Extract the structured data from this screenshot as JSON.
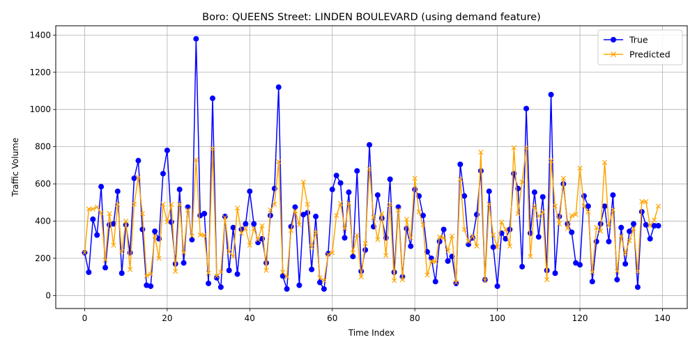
{
  "chart_data": {
    "type": "line",
    "title": "Boro: QUEENS Street: LINDEN BOULEVARD (using demand feature)",
    "xlabel": "Time Index",
    "ylabel": "Traffic Volume",
    "xlim": [
      -7,
      146
    ],
    "ylim": [
      -70,
      1450
    ],
    "xticks": [
      0,
      20,
      40,
      60,
      80,
      100,
      120,
      140
    ],
    "yticks": [
      0,
      200,
      400,
      600,
      800,
      1000,
      1200,
      1400
    ],
    "grid": true,
    "legend_position": "upper right",
    "series": [
      {
        "name": "True",
        "color": "#0000ff",
        "marker": "circle",
        "values": [
          230,
          125,
          410,
          325,
          585,
          150,
          380,
          385,
          560,
          120,
          380,
          230,
          630,
          725,
          355,
          55,
          50,
          345,
          305,
          655,
          780,
          395,
          170,
          570,
          175,
          475,
          300,
          1380,
          430,
          440,
          65,
          1060,
          95,
          45,
          425,
          135,
          365,
          115,
          355,
          385,
          560,
          385,
          285,
          305,
          175,
          430,
          575,
          1120,
          105,
          35,
          370,
          475,
          55,
          435,
          445,
          140,
          425,
          70,
          35,
          225,
          570,
          645,
          605,
          310,
          555,
          210,
          670,
          130,
          245,
          810,
          370,
          540,
          415,
          310,
          625,
          125,
          475,
          100,
          360,
          265,
          570,
          535,
          430,
          235,
          200,
          75,
          290,
          355,
          185,
          210,
          65,
          705,
          535,
          275,
          310,
          435,
          670,
          85,
          560,
          260,
          50,
          335,
          305,
          355,
          655,
          575,
          155,
          1005,
          335,
          555,
          315,
          530,
          135,
          1080,
          120,
          425,
          600,
          385,
          340,
          175,
          165,
          535,
          480,
          75,
          290,
          385,
          480,
          290,
          540,
          85,
          365,
          170,
          345,
          385,
          45,
          450,
          380,
          305,
          375,
          375
        ]
      },
      {
        "name": "Predicted",
        "color": "#ffa500",
        "marker": "x",
        "values": [
          230,
          465,
          465,
          475,
          445,
          190,
          440,
          270,
          490,
          235,
          400,
          140,
          490,
          635,
          440,
          105,
          115,
          320,
          200,
          490,
          395,
          490,
          130,
          490,
          230,
          460,
          320,
          730,
          325,
          325,
          120,
          790,
          105,
          125,
          420,
          235,
          210,
          470,
          335,
          360,
          270,
          360,
          300,
          375,
          135,
          460,
          490,
          720,
          125,
          100,
          350,
          455,
          380,
          610,
          490,
          260,
          340,
          95,
          80,
          220,
          230,
          430,
          495,
          360,
          495,
          230,
          325,
          100,
          280,
          680,
          420,
          300,
          440,
          215,
          490,
          80,
          460,
          85,
          410,
          310,
          630,
          450,
          380,
          110,
          185,
          180,
          315,
          310,
          240,
          320,
          70,
          625,
          355,
          290,
          320,
          265,
          770,
          80,
          490,
          325,
          260,
          395,
          355,
          265,
          795,
          440,
          610,
          795,
          210,
          480,
          425,
          450,
          85,
          725,
          480,
          385,
          630,
          360,
          430,
          435,
          685,
          480,
          450,
          125,
          365,
          345,
          715,
          375,
          460,
          130,
          320,
          225,
          295,
          360,
          130,
          505,
          505,
          375,
          405,
          480
        ]
      }
    ]
  }
}
